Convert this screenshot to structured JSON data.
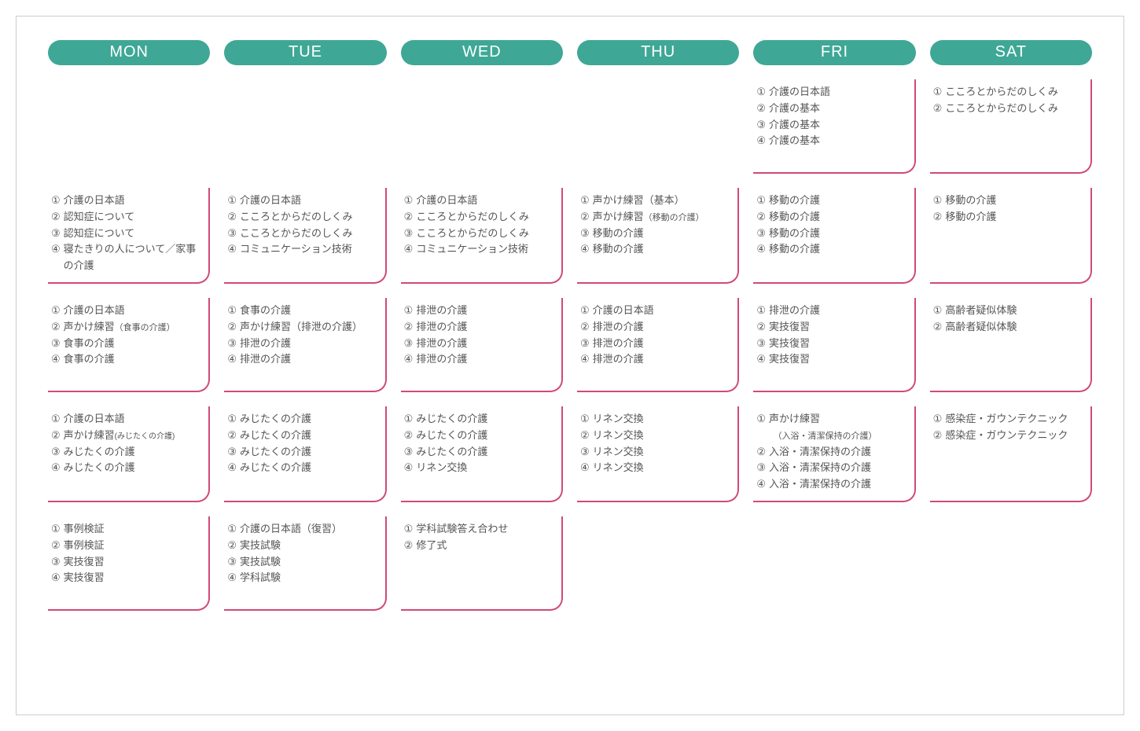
{
  "layout": {
    "columns": 6,
    "header_bg": "#3fa796",
    "header_fg": "#ffffff",
    "cell_border_color": "#d04a7a",
    "text_color": "#555555",
    "outer_border_color": "#cccccc"
  },
  "days": [
    "MON",
    "TUE",
    "WED",
    "THU",
    "FRI",
    "SAT"
  ],
  "circled": [
    "①",
    "②",
    "③",
    "④"
  ],
  "rows": [
    [
      null,
      null,
      null,
      null,
      {
        "items": [
          "介護の日本語",
          "介護の基本",
          "介護の基本",
          "介護の基本"
        ]
      },
      {
        "items": [
          "こころとからだのしくみ",
          "こころとからだのしくみ"
        ]
      }
    ],
    [
      {
        "items": [
          "介護の日本語",
          "認知症について",
          "認知症について",
          "寝たきりの人について／家事の介護"
        ]
      },
      {
        "items": [
          "介護の日本語",
          "こころとからだのしくみ",
          "こころとからだのしくみ",
          "コミュニケーション技術"
        ]
      },
      {
        "items": [
          "介護の日本語",
          "こころとからだのしくみ",
          "こころとからだのしくみ",
          "コミュニケーション技術"
        ]
      },
      {
        "items": [
          "声かけ練習（基本）",
          {
            "text": "声かけ練習",
            "suffix": "（移動の介護）",
            "suffix_size": "small"
          },
          "移動の介護",
          "移動の介護"
        ]
      },
      {
        "items": [
          "移動の介護",
          "移動の介護",
          "移動の介護",
          "移動の介護"
        ]
      },
      {
        "items": [
          "移動の介護",
          "移動の介護"
        ]
      }
    ],
    [
      {
        "items": [
          "介護の日本語",
          {
            "text": "声かけ練習",
            "suffix": "（食事の介護）",
            "suffix_size": "small"
          },
          "食事の介護",
          "食事の介護"
        ]
      },
      {
        "items": [
          "食事の介護",
          "声かけ練習（排泄の介護）",
          "排泄の介護",
          "排泄の介護"
        ]
      },
      {
        "items": [
          "排泄の介護",
          "排泄の介護",
          "排泄の介護",
          "排泄の介護"
        ]
      },
      {
        "items": [
          "介護の日本語",
          "排泄の介護",
          "排泄の介護",
          "排泄の介護"
        ]
      },
      {
        "items": [
          "排泄の介護",
          "実技復習",
          "実技復習",
          "実技復習"
        ]
      },
      {
        "items": [
          "高齢者疑似体験",
          "高齢者疑似体験"
        ]
      }
    ],
    [
      {
        "items": [
          "介護の日本語",
          {
            "text": "声かけ練習",
            "suffix": "(みじたくの介護)",
            "suffix_size": "xsmall"
          },
          "みじたくの介護",
          "みじたくの介護"
        ]
      },
      {
        "items": [
          "みじたくの介護",
          "みじたくの介護",
          "みじたくの介護",
          "みじたくの介護"
        ]
      },
      {
        "items": [
          "みじたくの介護",
          "みじたくの介護",
          "みじたくの介護",
          "リネン交換"
        ]
      },
      {
        "items": [
          "リネン交換",
          "リネン交換",
          "リネン交換",
          "リネン交換"
        ]
      },
      {
        "items": [
          {
            "text": "声かけ練習",
            "sub": "（入浴・清潔保持の介護）",
            "sub_size": "small"
          },
          "入浴・清潔保持の介護",
          "入浴・清潔保持の介護",
          "入浴・清潔保持の介護"
        ]
      },
      {
        "items": [
          "感染症・ガウンテクニック",
          "感染症・ガウンテクニック"
        ]
      }
    ],
    [
      {
        "items": [
          "事例検証",
          "事例検証",
          "実技復習",
          "実技復習"
        ]
      },
      {
        "items": [
          "介護の日本語（復習）",
          "実技試験",
          "実技試験",
          "学科試験"
        ]
      },
      {
        "items": [
          "学科試験答え合わせ",
          "修了式"
        ]
      },
      null,
      null,
      null
    ]
  ]
}
